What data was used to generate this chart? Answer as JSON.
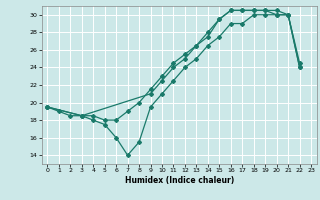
{
  "xlabel": "Humidex (Indice chaleur)",
  "bg_color": "#cce8e8",
  "grid_color": "#ffffff",
  "line_color": "#1a7a6a",
  "xlim": [
    -0.5,
    23.5
  ],
  "ylim": [
    13,
    31
  ],
  "xticks": [
    0,
    1,
    2,
    3,
    4,
    5,
    6,
    7,
    8,
    9,
    10,
    11,
    12,
    13,
    14,
    15,
    16,
    17,
    18,
    19,
    20,
    21,
    22,
    23
  ],
  "yticks": [
    14,
    16,
    18,
    20,
    22,
    24,
    26,
    28,
    30
  ],
  "line1_x": [
    0,
    1,
    2,
    3,
    4,
    5,
    6,
    7,
    8,
    9,
    10,
    11,
    12,
    13,
    14,
    15,
    16,
    17,
    18,
    19,
    20,
    21,
    22
  ],
  "line1_y": [
    19.5,
    19.0,
    18.5,
    18.5,
    18.0,
    17.5,
    16.0,
    14.0,
    15.5,
    19.5,
    21.0,
    22.5,
    24.0,
    25.0,
    26.5,
    27.5,
    29.0,
    29.0,
    30.0,
    30.0,
    30.0,
    30.0,
    24.5
  ],
  "line2_x": [
    0,
    3,
    9,
    10,
    11,
    12,
    13,
    14,
    15,
    16,
    17,
    18,
    19,
    20,
    21,
    22
  ],
  "line2_y": [
    19.5,
    18.5,
    21.0,
    22.5,
    24.0,
    25.0,
    26.5,
    27.5,
    29.5,
    30.5,
    30.5,
    30.5,
    30.5,
    30.5,
    30.0,
    24.0
  ],
  "line3_x": [
    0,
    3,
    4,
    5,
    6,
    7,
    8,
    9,
    10,
    11,
    12,
    13,
    14,
    15,
    16,
    17,
    18,
    19,
    20,
    21,
    22
  ],
  "line3_y": [
    19.5,
    18.5,
    18.5,
    18.0,
    18.0,
    19.0,
    20.0,
    21.5,
    23.0,
    24.5,
    25.5,
    26.5,
    28.0,
    29.5,
    30.5,
    30.5,
    30.5,
    30.5,
    30.0,
    30.0,
    24.0
  ]
}
